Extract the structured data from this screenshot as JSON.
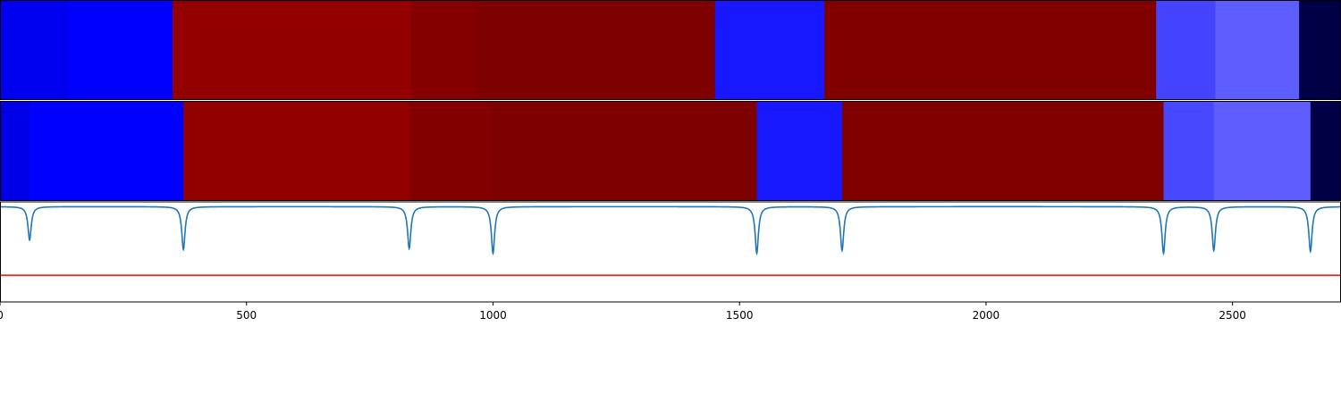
{
  "chart_data": [
    {
      "type": "heatmap",
      "panel": "top",
      "orientation": "horizontal-bands",
      "xlim": [
        0,
        2720
      ],
      "segments": [
        {
          "x0": 0,
          "x1": 140,
          "color": "#0000f0"
        },
        {
          "x0": 140,
          "x1": 350,
          "color": "#0000ff"
        },
        {
          "x0": 350,
          "x1": 835,
          "color": "#920000"
        },
        {
          "x0": 835,
          "x1": 965,
          "color": "#840000"
        },
        {
          "x0": 965,
          "x1": 1450,
          "color": "#7e0000"
        },
        {
          "x0": 1450,
          "x1": 1672,
          "color": "#1818ff"
        },
        {
          "x0": 1672,
          "x1": 2345,
          "color": "#800000"
        },
        {
          "x0": 2345,
          "x1": 2465,
          "color": "#4444ff"
        },
        {
          "x0": 2465,
          "x1": 2635,
          "color": "#5e5eff"
        },
        {
          "x0": 2635,
          "x1": 2720,
          "color": "#000046"
        }
      ]
    },
    {
      "type": "heatmap",
      "panel": "middle",
      "orientation": "horizontal-bands",
      "xlim": [
        0,
        2720
      ],
      "segments": [
        {
          "x0": 0,
          "x1": 60,
          "color": "#0000e6"
        },
        {
          "x0": 60,
          "x1": 372,
          "color": "#0000ff"
        },
        {
          "x0": 372,
          "x1": 830,
          "color": "#920000"
        },
        {
          "x0": 830,
          "x1": 1000,
          "color": "#830000"
        },
        {
          "x0": 1000,
          "x1": 1535,
          "color": "#7e0000"
        },
        {
          "x0": 1535,
          "x1": 1708,
          "color": "#1818ff"
        },
        {
          "x0": 1708,
          "x1": 2360,
          "color": "#800000"
        },
        {
          "x0": 2360,
          "x1": 2462,
          "color": "#4848ff"
        },
        {
          "x0": 2462,
          "x1": 2658,
          "color": "#5e5eff"
        },
        {
          "x0": 2658,
          "x1": 2720,
          "color": "#000046"
        }
      ]
    },
    {
      "type": "line",
      "panel": "bottom",
      "xlim": [
        0,
        2720
      ],
      "ylim": [
        -1.0,
        0.05
      ],
      "baseline": 0.0,
      "dip_width": 4,
      "series": [
        {
          "color": "#1f77b4",
          "dips": [
            {
              "x": 60,
              "depth": -0.35
            },
            {
              "x": 372,
              "depth": -0.45
            },
            {
              "x": 830,
              "depth": -0.44
            },
            {
              "x": 1000,
              "depth": -0.49
            },
            {
              "x": 1535,
              "depth": -0.49
            },
            {
              "x": 1708,
              "depth": -0.46
            },
            {
              "x": 2360,
              "depth": -0.49
            },
            {
              "x": 2462,
              "depth": -0.46
            },
            {
              "x": 2658,
              "depth": -0.47
            }
          ]
        },
        {
          "color": "#ff0000",
          "constant": -0.72
        }
      ],
      "xticks": [
        0,
        500,
        1000,
        1500,
        2000,
        2500
      ],
      "xtick_labels": [
        "0",
        "500",
        "1000",
        "1500",
        "2000",
        "2500"
      ],
      "grid": false
    }
  ]
}
